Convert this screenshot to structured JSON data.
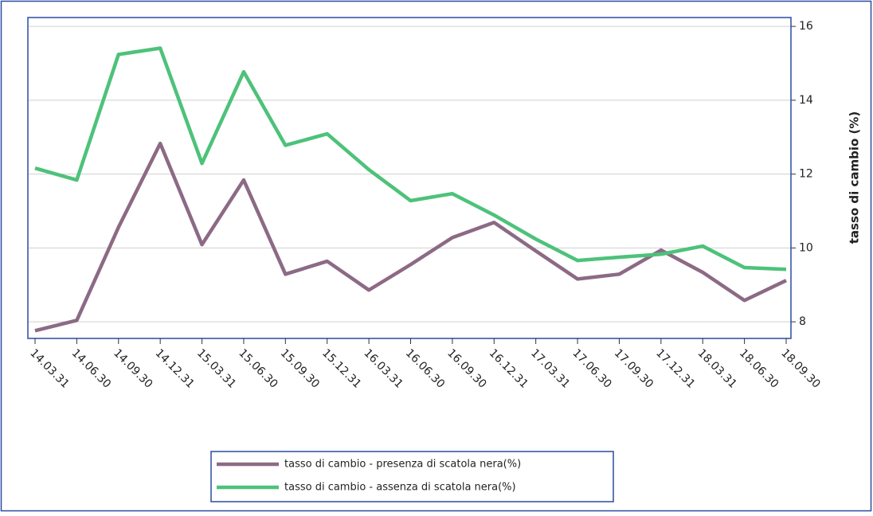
{
  "chart_data": {
    "type": "line",
    "y_label": "tasso di cambio (%)",
    "categories": [
      "14.03.31",
      "14.06.30",
      "14.09.30",
      "14.12.31",
      "15.03.31",
      "15.06.30",
      "15.09.30",
      "15.12.31",
      "16.03.31",
      "16.06.30",
      "16.09.30",
      "16.12.31",
      "17.03.31",
      "17.06.30",
      "17.09.30",
      "17.12.31",
      "18.03.31",
      "18.06.30",
      "18.09.30"
    ],
    "series": [
      {
        "name": "tasso di cambio - presenza di scatola nera(%)",
        "color": "#8c6a85",
        "values": [
          7.76,
          8.04,
          10.56,
          12.83,
          10.09,
          11.84,
          9.29,
          9.64,
          8.86,
          9.55,
          10.28,
          10.69,
          9.92,
          9.16,
          9.29,
          9.94,
          9.34,
          8.58,
          9.12
        ]
      },
      {
        "name": "tasso di cambio - assenza di scatola nera(%)",
        "color": "#4dc27a",
        "values": [
          12.16,
          11.84,
          15.24,
          15.41,
          12.29,
          14.77,
          12.78,
          13.09,
          12.12,
          11.28,
          11.47,
          10.89,
          10.24,
          9.66,
          9.75,
          9.83,
          10.05,
          9.47,
          9.42
        ]
      }
    ],
    "ylim": [
      7.55,
      16.24
    ],
    "yticks": [
      8,
      10,
      12,
      14,
      16
    ],
    "grid": true
  }
}
